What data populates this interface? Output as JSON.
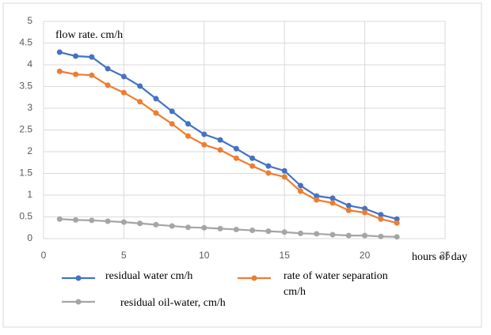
{
  "chart_data": {
    "type": "line",
    "y_label": "flow rate. cm/h",
    "x_label": "hours of day",
    "x": [
      1,
      2,
      3,
      4,
      5,
      6,
      7,
      8,
      9,
      10,
      11,
      12,
      13,
      14,
      15,
      16,
      17,
      18,
      19,
      20,
      21,
      22
    ],
    "series": [
      {
        "name": "residual water cm/h",
        "color": "#4472c4",
        "values": [
          4.29,
          4.2,
          4.18,
          3.91,
          3.73,
          3.51,
          3.22,
          2.93,
          2.64,
          2.4,
          2.27,
          2.07,
          1.85,
          1.67,
          1.56,
          1.22,
          0.98,
          0.93,
          0.76,
          0.69,
          0.55,
          0.45
        ]
      },
      {
        "name": "rate of water separation cm/h",
        "color": "#ed7d31",
        "values": [
          3.85,
          3.78,
          3.76,
          3.53,
          3.36,
          3.15,
          2.89,
          2.64,
          2.36,
          2.16,
          2.04,
          1.85,
          1.67,
          1.51,
          1.42,
          1.09,
          0.89,
          0.82,
          0.65,
          0.6,
          0.45,
          0.36
        ]
      },
      {
        "name": "residual oil-water, cm/h",
        "color": "#a5a5a5",
        "values": [
          0.45,
          0.43,
          0.42,
          0.4,
          0.38,
          0.35,
          0.32,
          0.29,
          0.26,
          0.25,
          0.23,
          0.21,
          0.19,
          0.17,
          0.15,
          0.12,
          0.11,
          0.09,
          0.07,
          0.07,
          0.05,
          0.04
        ]
      }
    ],
    "xlim": [
      0,
      25
    ],
    "xticks": [
      0,
      5,
      10,
      15,
      20,
      25
    ],
    "ylim": [
      0,
      5
    ],
    "yticks": [
      0,
      0.5,
      1,
      1.5,
      2,
      2.5,
      3,
      3.5,
      4,
      4.5,
      5
    ],
    "grid": true
  }
}
